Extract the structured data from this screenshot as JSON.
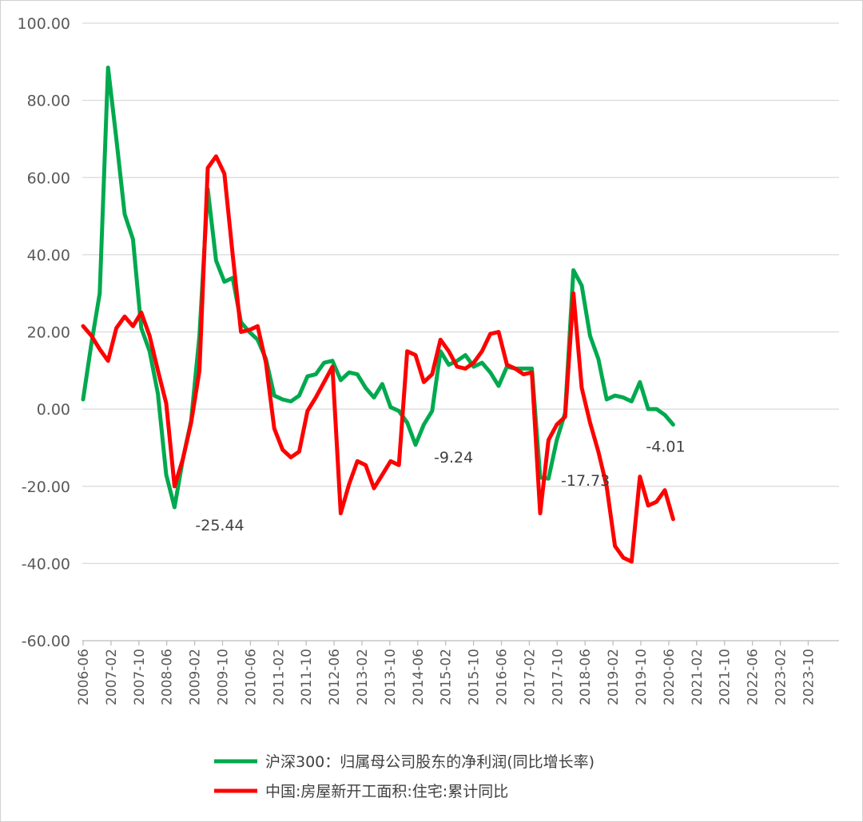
{
  "chart_data": {
    "type": "line",
    "title": "",
    "xlabel": "",
    "ylabel": "",
    "ylim": [
      -60,
      100
    ],
    "yticks": [
      "100.00",
      "80.00",
      "60.00",
      "40.00",
      "20.00",
      "0.00",
      "-20.00",
      "-40.00",
      "-60.00"
    ],
    "xtick_labels": [
      "2006-06",
      "2007-02",
      "2007-10",
      "2008-06",
      "2009-02",
      "2009-10",
      "2010-06",
      "2011-02",
      "2011-10",
      "2012-06",
      "2013-02",
      "2013-10",
      "2014-06",
      "2015-02",
      "2015-10",
      "2016-06",
      "2017-02",
      "2017-10",
      "2018-06",
      "2019-02",
      "2019-10",
      "2020-06",
      "2021-02",
      "2021-10",
      "2022-06",
      "2023-02",
      "2023-10"
    ],
    "grid": true,
    "legend_position": "bottom",
    "series": [
      {
        "name": "沪深300：归属母公司股东的净利润(同比增长率)",
        "color": "#00a94f",
        "values": [
          2.5,
          17,
          30,
          88.5,
          70,
          50.5,
          44,
          21,
          15,
          4,
          -17,
          -25.44,
          -13,
          -3,
          19,
          57,
          38.5,
          33,
          34,
          22.5,
          20,
          18,
          13,
          3.5,
          2.5,
          2,
          3.5,
          8.5,
          9,
          12,
          12.5,
          7.5,
          9.5,
          9,
          5.5,
          3,
          6.5,
          0.5,
          -0.5,
          -3.5,
          -9.24,
          -4,
          -0.5,
          15,
          11.5,
          12.5,
          14,
          11,
          12,
          9.5,
          6,
          11,
          10.5,
          10.5,
          10.5,
          -17.73,
          -18,
          -8,
          -1,
          36,
          32,
          19,
          13,
          2.5,
          3.5,
          3,
          2,
          7,
          0,
          0,
          -1.5,
          -4.01
        ]
      },
      {
        "name": "中国:房屋新开工面积:住宅:累计同比",
        "color": "#ff0000",
        "values": [
          21.5,
          19,
          15.5,
          12.5,
          21,
          24,
          21.5,
          25,
          19,
          10,
          1.5,
          -20,
          -13,
          -3.5,
          10,
          62.5,
          65.5,
          61,
          40,
          20,
          20.5,
          21.5,
          12,
          -5,
          -10.5,
          -12.5,
          -11,
          -0.5,
          3,
          7,
          11,
          -27,
          -19.5,
          -13.5,
          -14.5,
          -20.5,
          -17,
          -13.5,
          -14.5,
          15,
          14,
          7,
          9,
          18,
          15,
          11,
          10.5,
          12,
          15,
          19.5,
          20,
          11.5,
          10.5,
          9,
          9.5,
          -27,
          -8,
          -4,
          -2,
          30,
          5.5,
          -3.5,
          -11,
          -20,
          -35.5,
          -38.5,
          -39.5,
          -17.5,
          -25,
          -24,
          -21,
          -28.5
        ]
      }
    ],
    "annotations": [
      "-25.44",
      "-9.24",
      "-17.73",
      "-4.01"
    ]
  }
}
